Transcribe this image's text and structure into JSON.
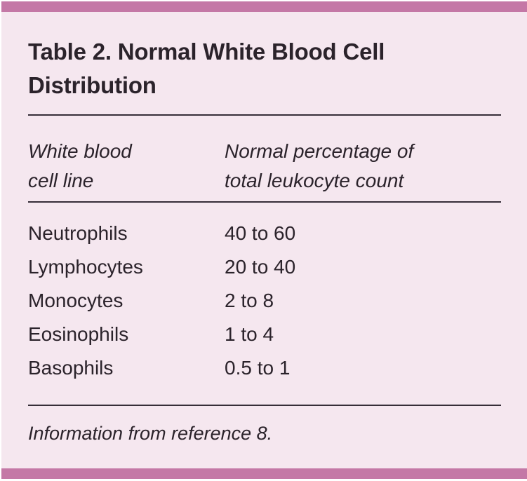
{
  "table": {
    "title": "Table 2. Normal White Blood Cell\nDistribution",
    "columns": [
      {
        "label": "White blood\ncell line"
      },
      {
        "label": "Normal percentage of\ntotal leukocyte count"
      }
    ],
    "rows": [
      {
        "cell_line": "Neutrophils",
        "percentage": "40 to 60"
      },
      {
        "cell_line": "Lymphocytes",
        "percentage": "20 to 40"
      },
      {
        "cell_line": "Monocytes",
        "percentage": "2 to 8"
      },
      {
        "cell_line": "Eosinophils",
        "percentage": "1 to 4"
      },
      {
        "cell_line": "Basophils",
        "percentage": "0.5 to 1"
      }
    ],
    "footnote": "Information from reference 8."
  },
  "colors": {
    "accent_bar": "#c478a6",
    "panel_background": "#f5e7ef",
    "text": "#2b232b",
    "rule": "#362e38"
  }
}
